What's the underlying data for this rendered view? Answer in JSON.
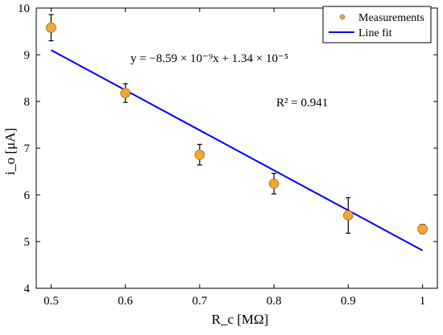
{
  "chart_data": {
    "type": "scatter",
    "xlabel": "R_c [MΩ]",
    "ylabel": "i_o [μA]",
    "xlim": [
      0.48,
      1.02
    ],
    "ylim": [
      4,
      10
    ],
    "x_ticks": [
      "0.5",
      "0.6",
      "0.7",
      "0.8",
      "0.9",
      "1"
    ],
    "y_ticks": [
      "4",
      "5",
      "6",
      "7",
      "8",
      "9",
      "10"
    ],
    "grid": false,
    "legend_position": "top-right",
    "series": [
      {
        "name": "Measurements",
        "kind": "scatter-errorbar",
        "color": "#f4a535",
        "x": [
          0.5,
          0.6,
          0.7,
          0.8,
          0.9,
          1.0
        ],
        "y": [
          9.58,
          8.18,
          6.86,
          6.24,
          5.56,
          5.27
        ],
        "err": [
          0.28,
          0.2,
          0.22,
          0.22,
          0.38,
          0.1
        ]
      },
      {
        "name": "Line fit",
        "kind": "line",
        "color": "#0000ff",
        "x": [
          0.5,
          1.0
        ],
        "y": [
          9.1,
          4.81
        ]
      }
    ],
    "annotations": {
      "equation": "y = −8.59 × 10⁻⁹x + 1.34 × 10⁻⁵",
      "r_squared": "R² = 0.941"
    }
  }
}
